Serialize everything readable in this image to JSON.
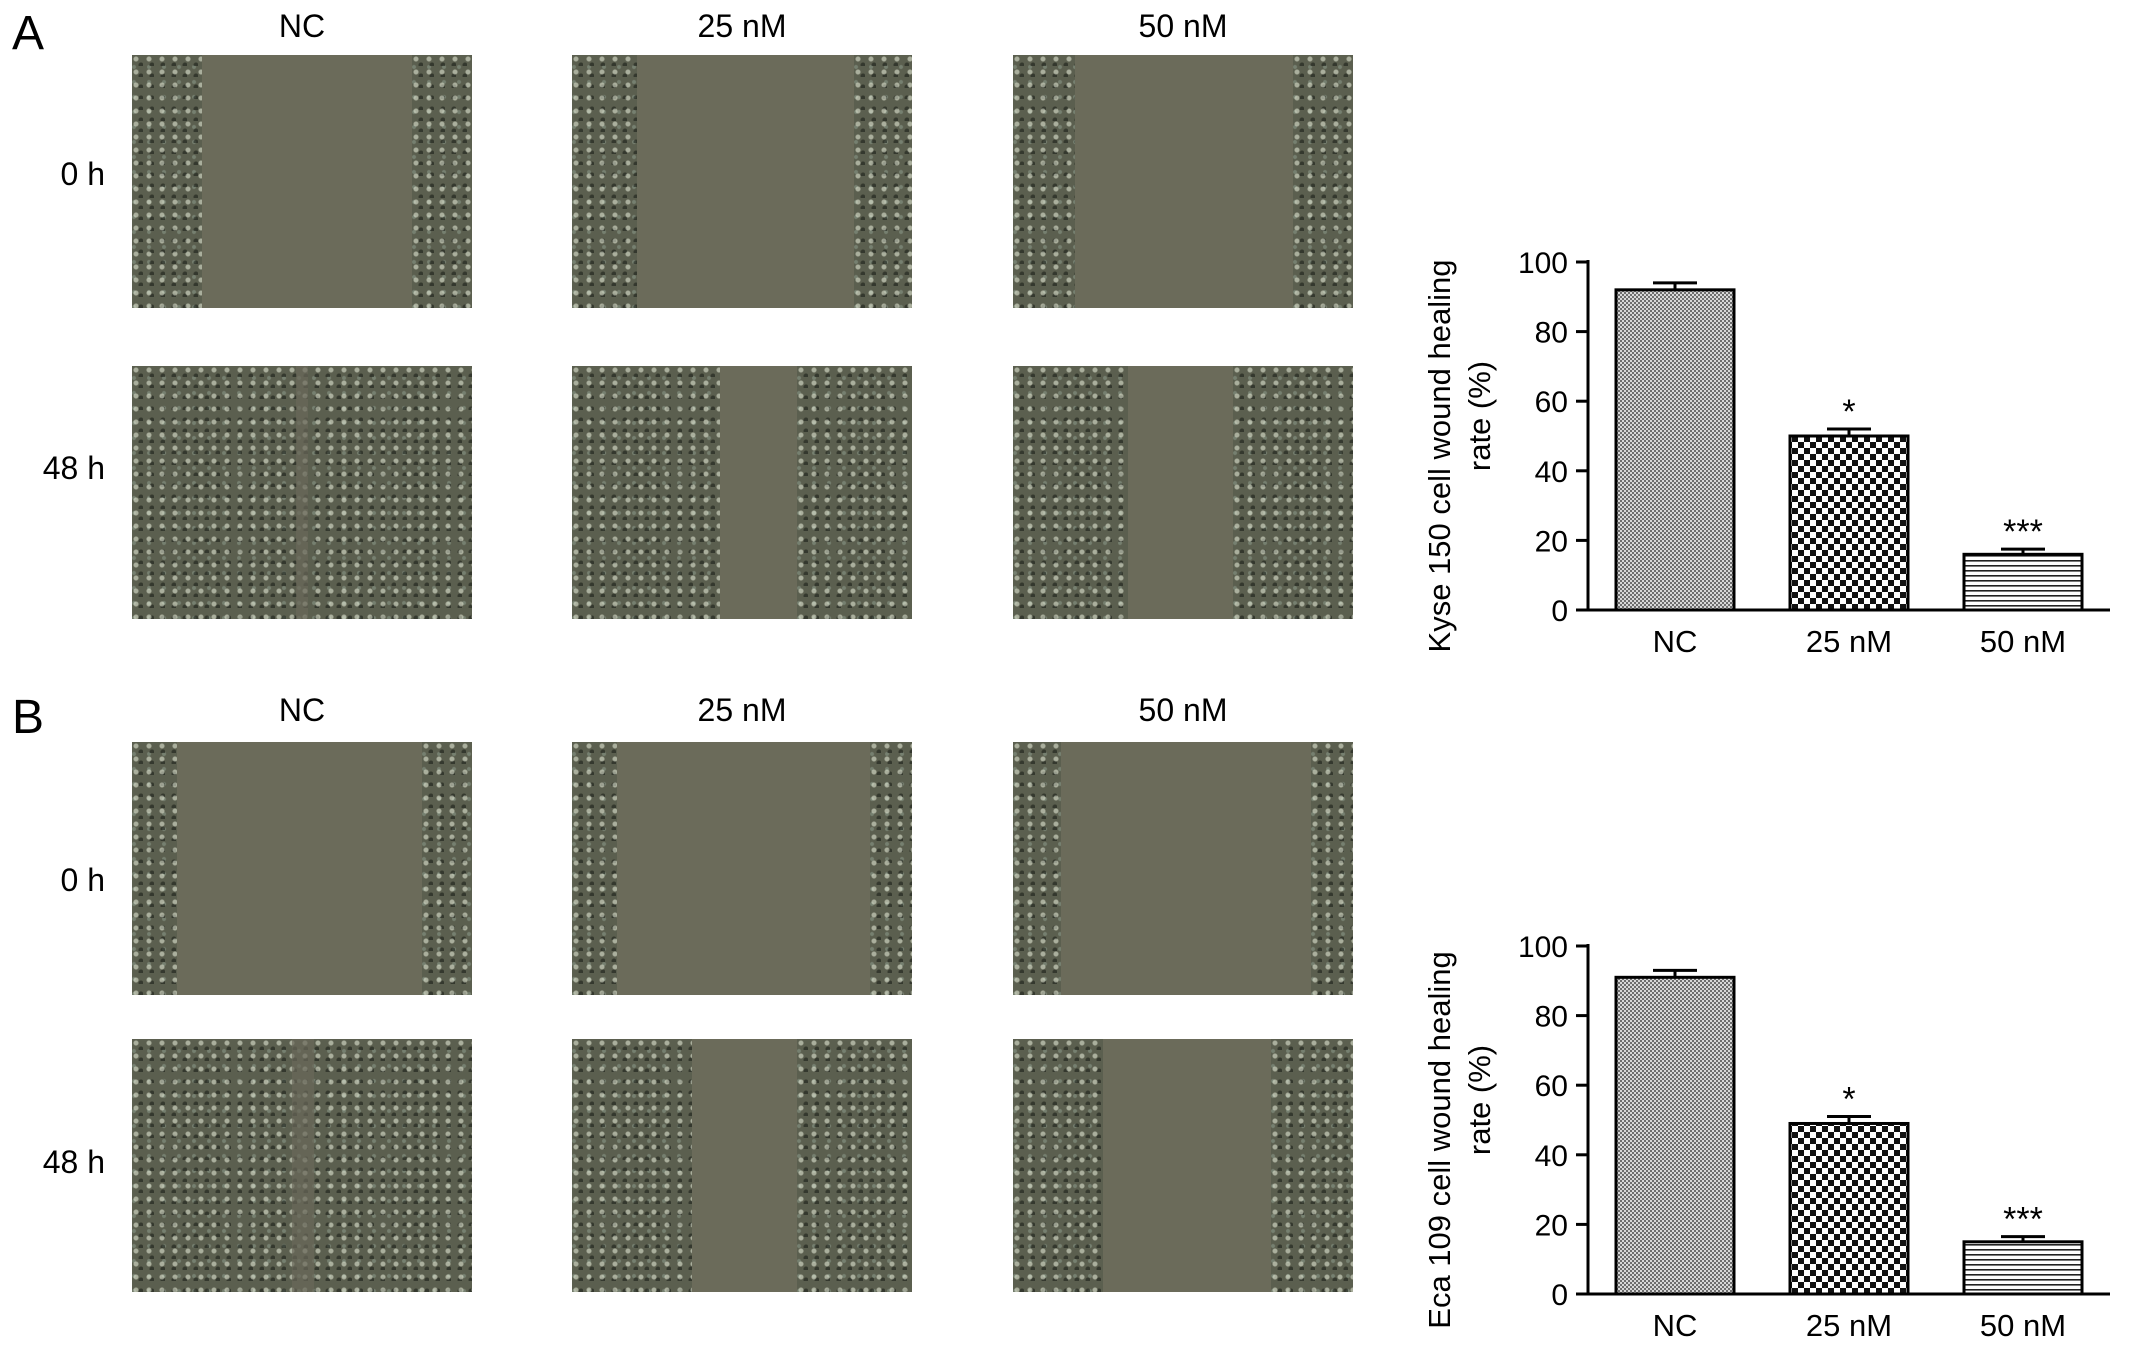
{
  "figure": {
    "panels": [
      {
        "letter": "A",
        "columns": [
          "NC",
          "25 nM",
          "50 nM"
        ],
        "rows": [
          "0 h",
          "48 h"
        ]
      },
      {
        "letter": "B",
        "columns": [
          "NC",
          "25 nM",
          "50 nM"
        ],
        "rows": [
          "0 h",
          "48 h"
        ]
      }
    ]
  },
  "chart_data": [
    {
      "type": "bar",
      "categories": [
        "NC",
        "25 nM",
        "50 nM"
      ],
      "values": [
        92,
        50,
        16
      ],
      "errors": [
        2,
        2,
        1.5
      ],
      "significance": [
        "",
        "*",
        "***"
      ],
      "ylabel_line1": "Kyse 150 cell wound healing",
      "ylabel_line2": "rate  (%)",
      "ylim": [
        0,
        100
      ],
      "yticks": [
        "0",
        "20",
        "40",
        "60",
        "80",
        "100"
      ],
      "patterns": [
        "fine-check",
        "coarse-check",
        "horizontal-lines"
      ]
    },
    {
      "type": "bar",
      "categories": [
        "NC",
        "25 nM",
        "50 nM"
      ],
      "values": [
        91,
        49,
        15
      ],
      "errors": [
        2,
        2,
        1.5
      ],
      "significance": [
        "",
        "*",
        "***"
      ],
      "ylabel_line1": "Eca 109 cell wound healing",
      "ylabel_line2": "rate  (%)",
      "ylim": [
        0,
        100
      ],
      "yticks": [
        "0",
        "20",
        "40",
        "60",
        "80",
        "100"
      ],
      "patterns": [
        "fine-check",
        "coarse-check",
        "horizontal-lines"
      ]
    }
  ]
}
